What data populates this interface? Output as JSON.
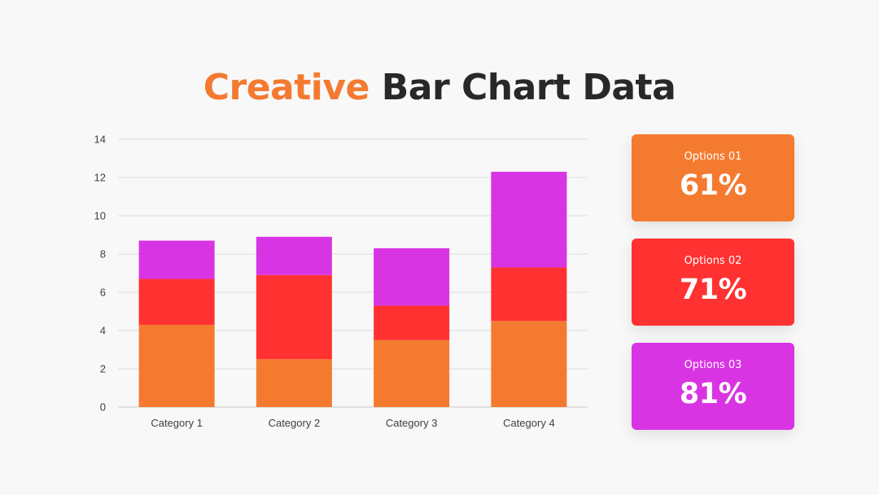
{
  "title": {
    "accent": "Creative",
    "rest": "Bar Chart Data"
  },
  "chart_data": {
    "type": "bar",
    "stacked": true,
    "categories": [
      "Category 1",
      "Category 2",
      "Category 3",
      "Category 4"
    ],
    "series": [
      {
        "values": [
          4.3,
          2.5,
          3.5,
          4.5
        ],
        "color": "#f47a30"
      },
      {
        "values": [
          2.4,
          4.4,
          1.8,
          2.8
        ],
        "color": "#ff3131"
      },
      {
        "values": [
          2.0,
          2.0,
          3.0,
          5.0
        ],
        "color": "#d934e3"
      }
    ],
    "ylim": [
      0,
      14
    ],
    "yticks": [
      0,
      2,
      4,
      6,
      8,
      10,
      12,
      14
    ],
    "grid": true,
    "title": "",
    "xlabel": "",
    "ylabel": ""
  },
  "cards": [
    {
      "label": "Options 01",
      "value": "61%",
      "color": "#f47a30"
    },
    {
      "label": "Options 02",
      "value": "71%",
      "color": "#ff3131"
    },
    {
      "label": "Options 03",
      "value": "81%",
      "color": "#d934e3"
    }
  ]
}
